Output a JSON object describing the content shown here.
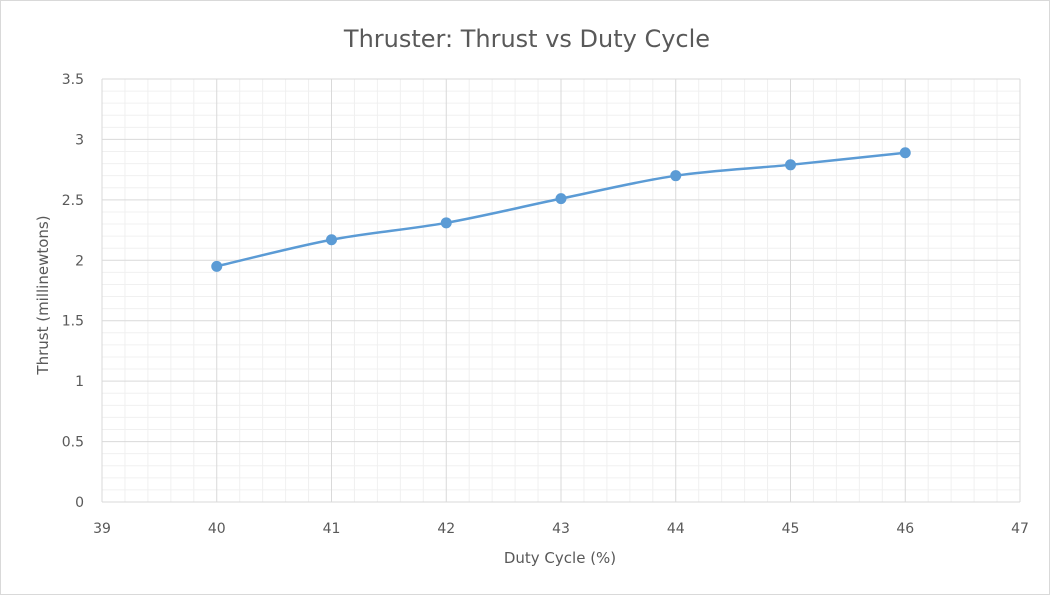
{
  "chart_data": {
    "type": "scatter",
    "title": "Thruster: Thrust vs Duty Cycle",
    "xlabel": "Duty Cycle (%)",
    "ylabel": "Thrust (millinewtons)",
    "xlim": [
      39,
      47
    ],
    "ylim": [
      0,
      3.5
    ],
    "x_ticks": [
      "39",
      "40",
      "41",
      "42",
      "43",
      "44",
      "45",
      "46",
      "47"
    ],
    "y_ticks": [
      "0",
      "0.5",
      "1",
      "1.5",
      "2",
      "2.5",
      "3",
      "3.5"
    ],
    "grid": true,
    "minor_grid": true,
    "legend": "none",
    "series": [
      {
        "x": [
          40,
          41,
          42,
          43,
          44,
          45,
          46
        ],
        "y": [
          1.95,
          2.17,
          2.31,
          2.51,
          2.7,
          2.79,
          2.89
        ],
        "color": "#5b9bd5",
        "line": "smooth",
        "marker": "circle"
      }
    ]
  }
}
